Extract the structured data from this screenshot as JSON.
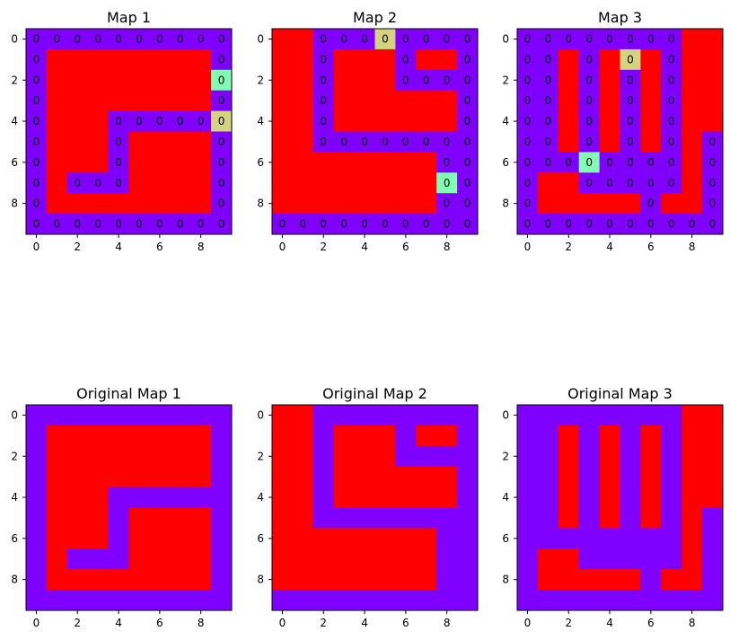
{
  "chart_data": [
    {
      "type": "heatmap",
      "title": "Map 1",
      "annotated": true,
      "grid": [
        [
          0,
          0,
          0,
          0,
          0,
          0,
          0,
          0,
          0,
          0
        ],
        [
          0,
          1,
          1,
          1,
          1,
          1,
          1,
          1,
          1,
          0
        ],
        [
          0,
          1,
          1,
          1,
          1,
          1,
          1,
          1,
          1,
          0
        ],
        [
          0,
          1,
          1,
          1,
          1,
          1,
          1,
          1,
          1,
          0
        ],
        [
          0,
          1,
          1,
          1,
          0,
          0,
          0,
          0,
          0,
          0
        ],
        [
          0,
          1,
          1,
          1,
          0,
          1,
          1,
          1,
          1,
          0
        ],
        [
          0,
          1,
          1,
          1,
          0,
          1,
          1,
          1,
          1,
          0
        ],
        [
          0,
          1,
          0,
          0,
          0,
          1,
          1,
          1,
          1,
          0
        ],
        [
          0,
          1,
          1,
          1,
          1,
          1,
          1,
          1,
          1,
          0
        ],
        [
          0,
          0,
          0,
          0,
          0,
          0,
          0,
          0,
          0,
          0
        ]
      ],
      "highlights": [
        {
          "row": 2,
          "col": 9,
          "kind": "goal"
        },
        {
          "row": 4,
          "col": 9,
          "kind": "start"
        }
      ],
      "xticks": [
        0,
        2,
        4,
        6,
        8
      ],
      "yticks": [
        0,
        2,
        4,
        6,
        8
      ]
    },
    {
      "type": "heatmap",
      "title": "Map 2",
      "annotated": true,
      "grid": [
        [
          1,
          1,
          0,
          0,
          0,
          0,
          0,
          0,
          0,
          0
        ],
        [
          1,
          1,
          0,
          1,
          1,
          1,
          0,
          1,
          1,
          0
        ],
        [
          1,
          1,
          0,
          1,
          1,
          1,
          0,
          0,
          0,
          0
        ],
        [
          1,
          1,
          0,
          1,
          1,
          1,
          1,
          1,
          1,
          0
        ],
        [
          1,
          1,
          0,
          1,
          1,
          1,
          1,
          1,
          1,
          0
        ],
        [
          1,
          1,
          0,
          0,
          0,
          0,
          0,
          0,
          0,
          0
        ],
        [
          1,
          1,
          1,
          1,
          1,
          1,
          1,
          1,
          0,
          0
        ],
        [
          1,
          1,
          1,
          1,
          1,
          1,
          1,
          1,
          0,
          0
        ],
        [
          1,
          1,
          1,
          1,
          1,
          1,
          1,
          1,
          0,
          0
        ],
        [
          0,
          0,
          0,
          0,
          0,
          0,
          0,
          0,
          0,
          0
        ]
      ],
      "highlights": [
        {
          "row": 0,
          "col": 5,
          "kind": "start"
        },
        {
          "row": 7,
          "col": 8,
          "kind": "goal"
        }
      ],
      "xticks": [
        0,
        2,
        4,
        6,
        8
      ],
      "yticks": [
        0,
        2,
        4,
        6,
        8
      ]
    },
    {
      "type": "heatmap",
      "title": "Map 3",
      "annotated": true,
      "grid": [
        [
          0,
          0,
          0,
          0,
          0,
          0,
          0,
          0,
          1,
          1
        ],
        [
          0,
          0,
          1,
          0,
          1,
          0,
          1,
          0,
          1,
          1
        ],
        [
          0,
          0,
          1,
          0,
          1,
          0,
          1,
          0,
          1,
          1
        ],
        [
          0,
          0,
          1,
          0,
          1,
          0,
          1,
          0,
          1,
          1
        ],
        [
          0,
          0,
          1,
          0,
          1,
          0,
          1,
          0,
          1,
          1
        ],
        [
          0,
          0,
          1,
          0,
          1,
          0,
          1,
          0,
          1,
          0
        ],
        [
          0,
          0,
          0,
          0,
          0,
          0,
          0,
          0,
          1,
          0
        ],
        [
          0,
          1,
          1,
          0,
          0,
          0,
          0,
          0,
          1,
          0
        ],
        [
          0,
          1,
          1,
          1,
          1,
          1,
          0,
          1,
          1,
          0
        ],
        [
          0,
          0,
          0,
          0,
          0,
          0,
          0,
          0,
          0,
          0
        ]
      ],
      "highlights": [
        {
          "row": 1,
          "col": 5,
          "kind": "start"
        },
        {
          "row": 6,
          "col": 3,
          "kind": "goal"
        }
      ],
      "xticks": [
        0,
        2,
        4,
        6,
        8
      ],
      "yticks": [
        0,
        2,
        4,
        6,
        8
      ]
    },
    {
      "type": "heatmap",
      "title": "Original Map 1",
      "annotated": false,
      "grid": [
        [
          0,
          0,
          0,
          0,
          0,
          0,
          0,
          0,
          0,
          0
        ],
        [
          0,
          1,
          1,
          1,
          1,
          1,
          1,
          1,
          1,
          0
        ],
        [
          0,
          1,
          1,
          1,
          1,
          1,
          1,
          1,
          1,
          0
        ],
        [
          0,
          1,
          1,
          1,
          1,
          1,
          1,
          1,
          1,
          0
        ],
        [
          0,
          1,
          1,
          1,
          0,
          0,
          0,
          0,
          0,
          0
        ],
        [
          0,
          1,
          1,
          1,
          0,
          1,
          1,
          1,
          1,
          0
        ],
        [
          0,
          1,
          1,
          1,
          0,
          1,
          1,
          1,
          1,
          0
        ],
        [
          0,
          1,
          0,
          0,
          0,
          1,
          1,
          1,
          1,
          0
        ],
        [
          0,
          1,
          1,
          1,
          1,
          1,
          1,
          1,
          1,
          0
        ],
        [
          0,
          0,
          0,
          0,
          0,
          0,
          0,
          0,
          0,
          0
        ]
      ],
      "highlights": [],
      "xticks": [
        0,
        2,
        4,
        6,
        8
      ],
      "yticks": [
        0,
        2,
        4,
        6,
        8
      ]
    },
    {
      "type": "heatmap",
      "title": "Original Map 2",
      "annotated": false,
      "grid": [
        [
          1,
          1,
          0,
          0,
          0,
          0,
          0,
          0,
          0,
          0
        ],
        [
          1,
          1,
          0,
          1,
          1,
          1,
          0,
          1,
          1,
          0
        ],
        [
          1,
          1,
          0,
          1,
          1,
          1,
          0,
          0,
          0,
          0
        ],
        [
          1,
          1,
          0,
          1,
          1,
          1,
          1,
          1,
          1,
          0
        ],
        [
          1,
          1,
          0,
          1,
          1,
          1,
          1,
          1,
          1,
          0
        ],
        [
          1,
          1,
          0,
          0,
          0,
          0,
          0,
          0,
          0,
          0
        ],
        [
          1,
          1,
          1,
          1,
          1,
          1,
          1,
          1,
          0,
          0
        ],
        [
          1,
          1,
          1,
          1,
          1,
          1,
          1,
          1,
          0,
          0
        ],
        [
          1,
          1,
          1,
          1,
          1,
          1,
          1,
          1,
          0,
          0
        ],
        [
          0,
          0,
          0,
          0,
          0,
          0,
          0,
          0,
          0,
          0
        ]
      ],
      "highlights": [],
      "xticks": [
        0,
        2,
        4,
        6,
        8
      ],
      "yticks": [
        0,
        2,
        4,
        6,
        8
      ]
    },
    {
      "type": "heatmap",
      "title": "Original Map 3",
      "annotated": false,
      "grid": [
        [
          0,
          0,
          0,
          0,
          0,
          0,
          0,
          0,
          1,
          1
        ],
        [
          0,
          0,
          1,
          0,
          1,
          0,
          1,
          0,
          1,
          1
        ],
        [
          0,
          0,
          1,
          0,
          1,
          0,
          1,
          0,
          1,
          1
        ],
        [
          0,
          0,
          1,
          0,
          1,
          0,
          1,
          0,
          1,
          1
        ],
        [
          0,
          0,
          1,
          0,
          1,
          0,
          1,
          0,
          1,
          1
        ],
        [
          0,
          0,
          1,
          0,
          1,
          0,
          1,
          0,
          1,
          0
        ],
        [
          0,
          0,
          0,
          0,
          0,
          0,
          0,
          0,
          1,
          0
        ],
        [
          0,
          1,
          1,
          0,
          0,
          0,
          0,
          0,
          1,
          0
        ],
        [
          0,
          1,
          1,
          1,
          1,
          1,
          0,
          1,
          1,
          0
        ],
        [
          0,
          0,
          0,
          0,
          0,
          0,
          0,
          0,
          0,
          0
        ]
      ],
      "highlights": [],
      "xticks": [
        0,
        2,
        4,
        6,
        8
      ],
      "yticks": [
        0,
        2,
        4,
        6,
        8
      ]
    }
  ],
  "cell_text": "0",
  "colors": {
    "open": "#8000ff",
    "wall": "#ff0000",
    "start": "#d4d480",
    "goal": "#80ffb4"
  }
}
